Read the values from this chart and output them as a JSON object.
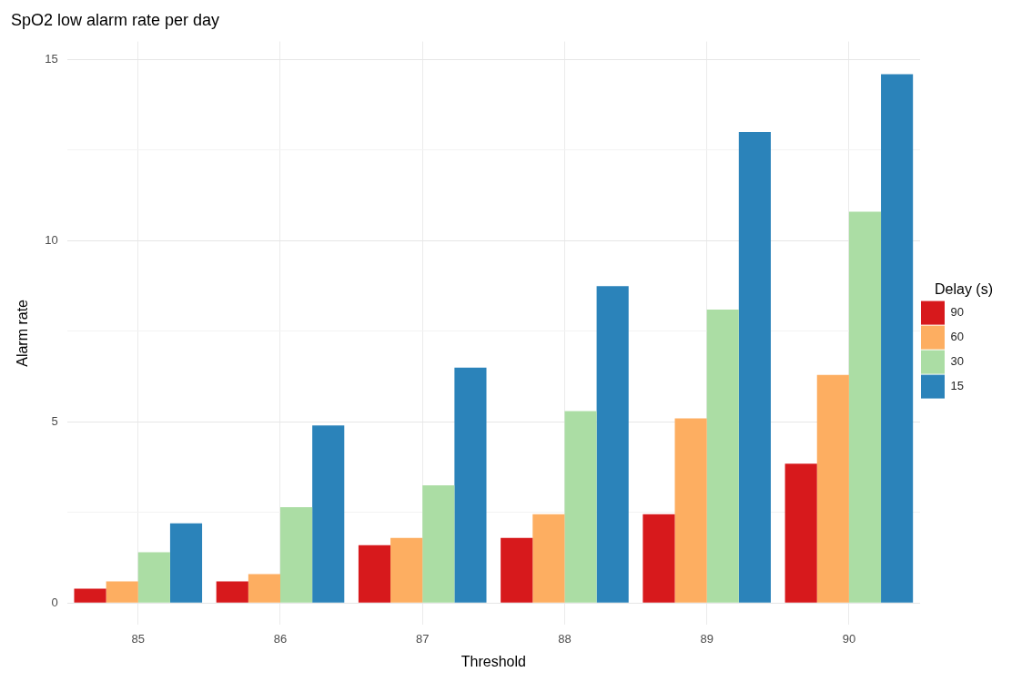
{
  "chart_data": {
    "type": "bar",
    "title": "SpO2 low alarm rate per day",
    "xlabel": "Threshold",
    "ylabel": "Alarm rate",
    "legend_title": "Delay (s)",
    "categories": [
      "85",
      "86",
      "87",
      "88",
      "89",
      "90"
    ],
    "series": [
      {
        "name": "90",
        "color": "#d7191c",
        "values": [
          0.4,
          0.6,
          1.6,
          1.8,
          2.45,
          3.85
        ]
      },
      {
        "name": "60",
        "color": "#fdae61",
        "values": [
          0.6,
          0.8,
          1.8,
          2.45,
          5.1,
          6.3
        ]
      },
      {
        "name": "30",
        "color": "#abdda4",
        "values": [
          1.4,
          2.65,
          3.25,
          5.3,
          8.1,
          10.8
        ]
      },
      {
        "name": "15",
        "color": "#2b83ba",
        "values": [
          2.2,
          4.9,
          6.5,
          8.75,
          13.0,
          14.6
        ]
      }
    ],
    "ylim": [
      -0.6,
      15.5
    ],
    "yticks": [
      0,
      {
        "value": 2.5,
        "label": null
      },
      5,
      {
        "value": 7.5,
        "label": null
      },
      10,
      {
        "value": 12.5,
        "label": null
      },
      15
    ],
    "grid": true,
    "legend": "right"
  }
}
